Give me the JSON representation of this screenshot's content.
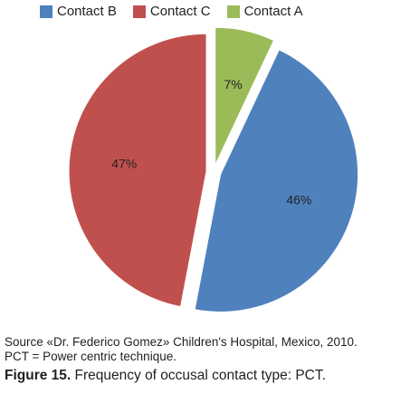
{
  "chart_data": {
    "type": "pie",
    "legend": [
      "Contact B",
      "Contact C",
      "Contact A"
    ],
    "slices": [
      {
        "name": "Contact A",
        "value": 7,
        "label": "7%",
        "color": "#9BBB59"
      },
      {
        "name": "Contact B",
        "value": 46,
        "label": "46%",
        "color": "#4F81BD"
      },
      {
        "name": "Contact C",
        "value": 47,
        "label": "47%",
        "color": "#C0504D"
      }
    ],
    "legend_placement": "top",
    "exploded": true
  },
  "notes": {
    "source": "Source «Dr. Federico Gomez» Children's Hospital, Mexico, 2010.",
    "pct": "PCT = Power centric technique."
  },
  "caption": {
    "label": "Figure 15.",
    "text": " Frequency of occusal contact type: PCT."
  }
}
